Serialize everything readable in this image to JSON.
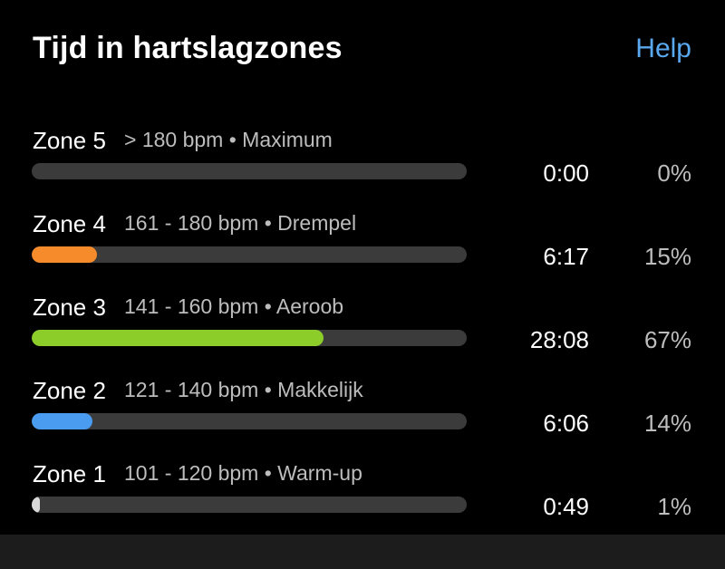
{
  "header": {
    "title": "Tijd in hartslagzones",
    "help_label": "Help"
  },
  "colors": {
    "accent_help": "#5aa9f0",
    "track": "#3b3b3b",
    "zone5": "#3b3b3b",
    "zone4": "#f58b2a",
    "zone3": "#8ccd2a",
    "zone2": "#4a9cf0",
    "zone1": "#d9d9d9"
  },
  "zones": [
    {
      "name": "Zone 5",
      "range": "> 180 bpm • Maximum",
      "time": "0:00",
      "percent": "0%",
      "fill_fraction": 0.0
    },
    {
      "name": "Zone 4",
      "range": "161 - 180 bpm • Drempel",
      "time": "6:17",
      "percent": "15%",
      "fill_fraction": 0.15
    },
    {
      "name": "Zone 3",
      "range": "141 - 160 bpm • Aeroob",
      "time": "28:08",
      "percent": "67%",
      "fill_fraction": 0.67
    },
    {
      "name": "Zone 2",
      "range": "121 - 140 bpm • Makkelijk",
      "time": "6:06",
      "percent": "14%",
      "fill_fraction": 0.14
    },
    {
      "name": "Zone 1",
      "range": "101 - 120 bpm • Warm-up",
      "time": "0:49",
      "percent": "1%",
      "fill_fraction": 0.01
    }
  ]
}
